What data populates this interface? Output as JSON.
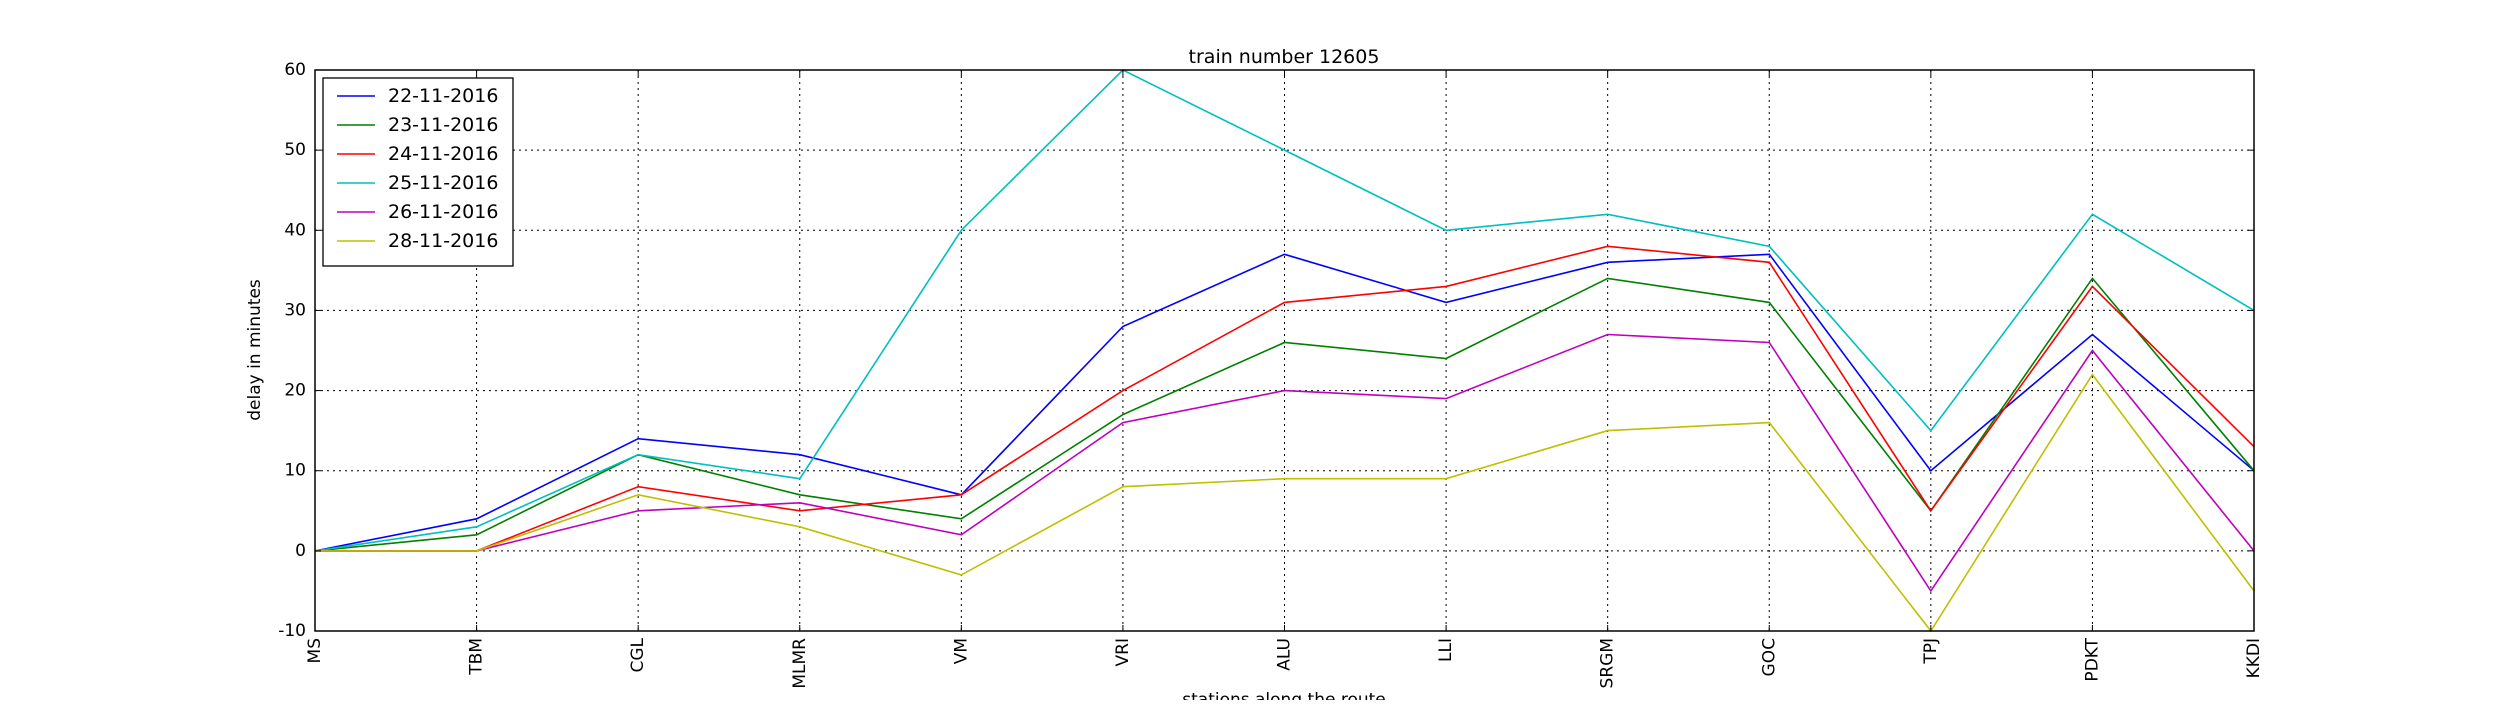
{
  "chart_data": {
    "type": "line",
    "title": "train number 12605",
    "xlabel": "stations along the route",
    "ylabel": "delay in minutes",
    "categories": [
      "MS",
      "TBM",
      "CGL",
      "MLMR",
      "VM",
      "VRI",
      "ALU",
      "LLI",
      "SRGM",
      "GOC",
      "TPJ",
      "PDKT",
      "KKDI"
    ],
    "ylim": [
      -10,
      60
    ],
    "yticks": [
      -10,
      0,
      10,
      20,
      30,
      40,
      50,
      60
    ],
    "grid": true,
    "legend_position": "top-left",
    "series": [
      {
        "name": "22-11-2016",
        "color": "#0000ff",
        "values": [
          0,
          4,
          14,
          12,
          7,
          28,
          37,
          31,
          36,
          37,
          10,
          27,
          10
        ]
      },
      {
        "name": "23-11-2016",
        "color": "#008000",
        "values": [
          0,
          2,
          12,
          7,
          4,
          17,
          26,
          24,
          34,
          31,
          5,
          34,
          10
        ]
      },
      {
        "name": "24-11-2016",
        "color": "#ff0000",
        "values": [
          0,
          0,
          8,
          5,
          7,
          20,
          31,
          33,
          38,
          36,
          5,
          33,
          13
        ]
      },
      {
        "name": "25-11-2016",
        "color": "#00bfbf",
        "values": [
          0,
          3,
          12,
          9,
          40,
          60,
          50,
          40,
          42,
          38,
          15,
          42,
          30
        ]
      },
      {
        "name": "26-11-2016",
        "color": "#bf00bf",
        "values": [
          0,
          0,
          5,
          6,
          2,
          16,
          20,
          19,
          27,
          26,
          -5,
          25,
          0
        ]
      },
      {
        "name": "28-11-2016",
        "color": "#bfbf00",
        "values": [
          0,
          0,
          7,
          3,
          -3,
          8,
          9,
          9,
          15,
          16,
          -10,
          22,
          -5
        ]
      }
    ]
  }
}
